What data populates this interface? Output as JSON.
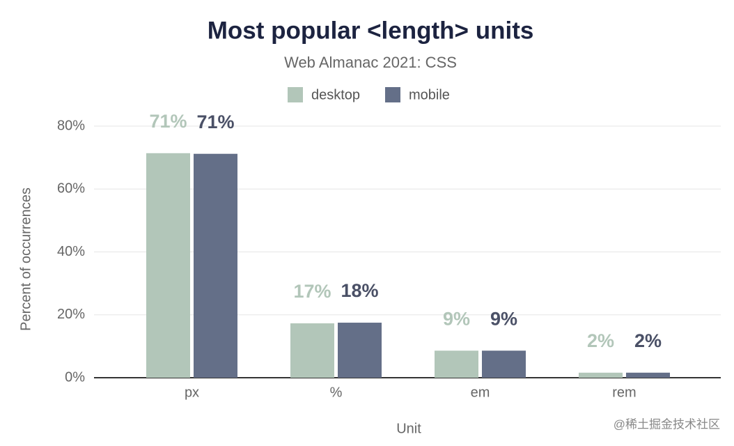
{
  "chart_data": {
    "type": "bar",
    "title": "Most popular <length> units",
    "subtitle": "Web Almanac 2021: CSS",
    "x_label": "Unit",
    "y_label": "Percent of occurrences",
    "categories": [
      "px",
      "%",
      "em",
      "rem"
    ],
    "series": [
      {
        "name": "desktop",
        "color": "#b2c6b9",
        "values": [
          71.4,
          17.3,
          8.6,
          1.6
        ],
        "value_labels": [
          "71%",
          "17%",
          "9%",
          "2%"
        ]
      },
      {
        "name": "mobile",
        "color": "#646f88",
        "values": [
          71.2,
          17.5,
          8.6,
          1.6
        ],
        "value_labels": [
          "71%",
          "18%",
          "9%",
          "2%"
        ]
      }
    ],
    "ylim": [
      0,
      80
    ],
    "yticks": [
      {
        "value": 0,
        "label": "0%"
      },
      {
        "value": 20,
        "label": "20%"
      },
      {
        "value": 40,
        "label": "40%"
      },
      {
        "value": 60,
        "label": "60%"
      },
      {
        "value": 80,
        "label": "80%"
      }
    ],
    "grid": true,
    "legend": "top",
    "watermark": "@稀土掘金技术社区"
  }
}
